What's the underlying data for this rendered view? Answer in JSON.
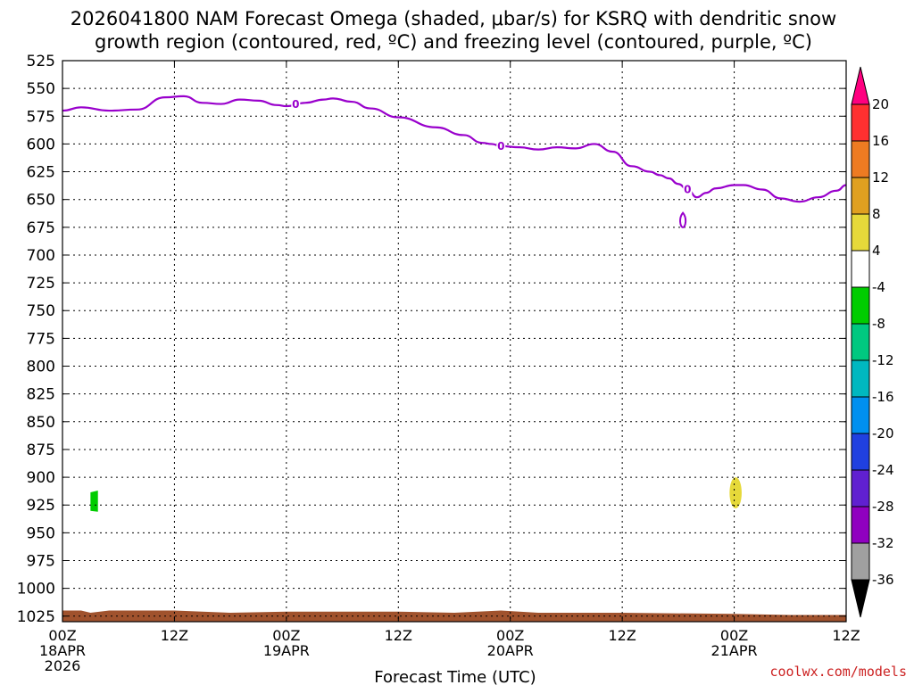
{
  "title_line1": "2026041800 NAM Forecast Omega (shaded, μbar/s) for KSRQ with dendritic snow",
  "title_line2": "growth region (contoured, red, ºC) and freezing level (contoured, purple, ºC)",
  "credit": "coolwx.com/models",
  "chart_data": {
    "type": "contour",
    "title": "2026041800 NAM Forecast Omega (shaded, μbar/s) for KSRQ with dendritic snow growth region (contoured, red, ºC) and freezing level (contoured, purple, ºC)",
    "xlabel": "Forecast Time (UTC)",
    "ylabel": "",
    "x_range_hours": [
      0,
      84
    ],
    "y_range_mb": [
      525,
      1030
    ],
    "y_inverted": true,
    "grid": true,
    "y_ticks": [
      525,
      550,
      575,
      600,
      625,
      650,
      675,
      700,
      725,
      750,
      775,
      800,
      825,
      850,
      875,
      900,
      925,
      950,
      975,
      1000,
      1025
    ],
    "x_ticks": [
      {
        "hour": 0,
        "lines": [
          "00Z",
          "18APR",
          "2026"
        ]
      },
      {
        "hour": 12,
        "lines": [
          "12Z"
        ]
      },
      {
        "hour": 24,
        "lines": [
          "00Z",
          "19APR"
        ]
      },
      {
        "hour": 36,
        "lines": [
          "12Z"
        ]
      },
      {
        "hour": 48,
        "lines": [
          "00Z",
          "20APR"
        ]
      },
      {
        "hour": 60,
        "lines": [
          "12Z"
        ]
      },
      {
        "hour": 72,
        "lines": [
          "00Z",
          "21APR"
        ]
      },
      {
        "hour": 84,
        "lines": [
          "12Z"
        ]
      }
    ],
    "freezing_level": {
      "name": "freezing level",
      "color": "#9900cc",
      "label": "0",
      "label_hours": [
        25,
        47,
        67
      ],
      "points": [
        [
          0,
          570
        ],
        [
          2,
          567
        ],
        [
          5,
          570
        ],
        [
          8,
          569
        ],
        [
          11,
          558
        ],
        [
          13,
          557
        ],
        [
          15,
          563
        ],
        [
          17,
          564
        ],
        [
          19,
          560
        ],
        [
          21,
          561
        ],
        [
          23,
          565
        ],
        [
          24,
          566
        ],
        [
          26,
          563
        ],
        [
          28,
          560
        ],
        [
          29,
          559
        ],
        [
          31,
          562
        ],
        [
          33,
          568
        ],
        [
          36,
          576
        ],
        [
          40,
          585
        ],
        [
          43,
          592
        ],
        [
          45,
          599
        ],
        [
          46,
          600
        ],
        [
          47,
          602
        ],
        [
          49,
          603
        ],
        [
          51,
          605
        ],
        [
          53,
          603
        ],
        [
          55,
          604
        ],
        [
          57,
          600
        ],
        [
          59,
          607
        ],
        [
          61,
          620
        ],
        [
          63,
          625
        ],
        [
          64,
          628
        ],
        [
          65,
          631
        ],
        [
          66,
          636
        ],
        [
          67,
          641
        ],
        [
          68,
          648
        ],
        [
          69,
          644
        ],
        [
          70,
          640
        ],
        [
          72,
          637
        ],
        [
          73,
          637
        ],
        [
          75,
          641
        ],
        [
          77,
          649
        ],
        [
          79,
          652
        ],
        [
          81,
          648
        ],
        [
          83,
          642
        ],
        [
          84,
          637
        ]
      ]
    },
    "freezing_level_closed": {
      "hour_center": 66.5,
      "p_top": 662,
      "p_bottom": 675
    },
    "omega_shaded": [
      {
        "hour_range": [
          3,
          3.8
        ],
        "p_range": [
          912,
          931
        ],
        "value_range": [
          -8,
          -4
        ],
        "color": "#00cc00"
      },
      {
        "hour_range": [
          71.5,
          72.8
        ],
        "p_range": [
          900,
          928
        ],
        "value_range": [
          4,
          8
        ],
        "color": "#e6d93a"
      }
    ],
    "terrain": {
      "color": "#a0522d",
      "top_points": [
        [
          0,
          1020
        ],
        [
          2,
          1020
        ],
        [
          3,
          1022
        ],
        [
          5,
          1020
        ],
        [
          12,
          1020
        ],
        [
          18,
          1022
        ],
        [
          24,
          1021
        ],
        [
          36,
          1021
        ],
        [
          42,
          1022
        ],
        [
          47,
          1020
        ],
        [
          51,
          1022
        ],
        [
          60,
          1022
        ],
        [
          72,
          1023
        ],
        [
          78,
          1024
        ],
        [
          84,
          1024
        ]
      ]
    },
    "colorbar": {
      "labels": [
        "20",
        "16",
        "12",
        "8",
        "4",
        "-4",
        "-8",
        "-12",
        "-16",
        "-20",
        "-24",
        "-28",
        "-32",
        "-36"
      ],
      "colors": [
        "#ff0080",
        "#ff3030",
        "#ee7b22",
        "#e0a020",
        "#e6d93a",
        "#ffffff",
        "#00cc00",
        "#00c880",
        "#00b8c0",
        "#0090f0",
        "#2040e0",
        "#6020d0",
        "#9000c0",
        "#a0a0a0",
        "#000000"
      ]
    }
  }
}
